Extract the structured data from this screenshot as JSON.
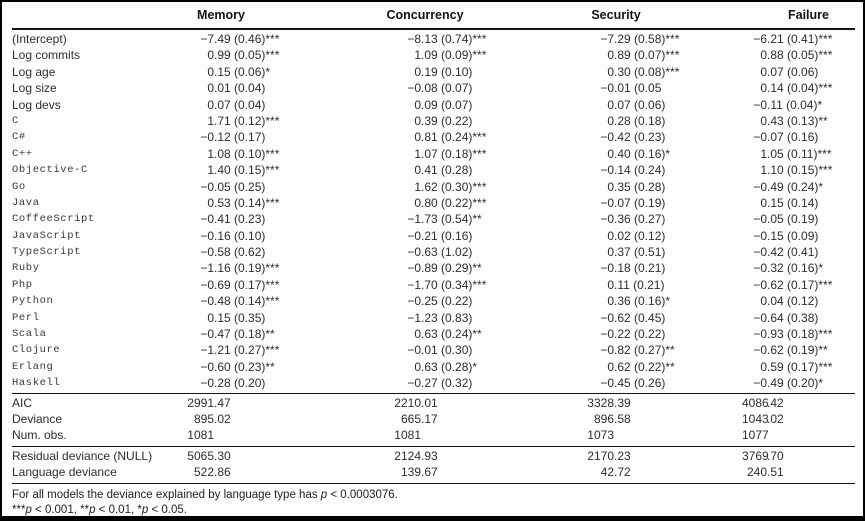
{
  "colors": {
    "text": "#2e2e2e",
    "line": "#141414",
    "frame_border": "#000000",
    "background": "#fdfdfd"
  },
  "table": {
    "column_headers": [
      "Memory",
      "Concurrency",
      "Security",
      "Failure"
    ],
    "coefficient_rows": [
      {
        "label": "(Intercept)",
        "mono": false,
        "values": [
          "−7.49 (0.46)***",
          "−8.13 (0.74)***",
          "−7.29 (0.58)***",
          "−6.21 (0.41)***"
        ]
      },
      {
        "label": "Log commits",
        "mono": false,
        "values": [
          "0.99 (0.05)***",
          "1.09 (0.09)***",
          "0.89 (0.07)***",
          "0.88 (0.05)***"
        ]
      },
      {
        "label": "Log age",
        "mono": false,
        "values": [
          "0.15 (0.06)*",
          "0.19 (0.10)",
          "0.30 (0.08)***",
          "0.07 (0.06)"
        ]
      },
      {
        "label": "Log size",
        "mono": false,
        "values": [
          "0.01 (0.04)",
          "−0.08 (0.07)",
          "−0.01 (0.05",
          "0.14 (0.04)***"
        ]
      },
      {
        "label": "Log devs",
        "mono": false,
        "values": [
          "0.07 (0.04)",
          "0.09 (0.07)",
          "0.07 (0.06)",
          "−0.11 (0.04)*"
        ]
      },
      {
        "label": "C",
        "mono": true,
        "values": [
          "1.71 (0.12)***",
          "0.39 (0.22)",
          "0.28 (0.18)",
          "0.43 (0.13)**"
        ]
      },
      {
        "label": "C#",
        "mono": true,
        "values": [
          "−0.12 (0.17)",
          "0.81 (0.24)***",
          "−0.42 (0.23)",
          "−0.07 (0.16)"
        ]
      },
      {
        "label": "C++",
        "mono": true,
        "values": [
          "1.08 (0.10)***",
          "1.07 (0.18)***",
          "0.40 (0.16)*",
          "1.05 (0.11)***"
        ]
      },
      {
        "label": "Objective-C",
        "mono": true,
        "values": [
          "1.40 (0.15)***",
          "0.41 (0.28)",
          "−0.14 (0.24)",
          "1.10 (0.15)***"
        ]
      },
      {
        "label": "Go",
        "mono": true,
        "values": [
          "−0.05 (0.25)",
          "1.62 (0.30)***",
          "0.35 (0.28)",
          "−0.49 (0.24)*"
        ]
      },
      {
        "label": "Java",
        "mono": true,
        "values": [
          "0.53 (0.14)***",
          "0.80 (0.22)***",
          "−0.07 (0.19)",
          "0.15 (0.14)"
        ]
      },
      {
        "label": "CoffeeScript",
        "mono": true,
        "values": [
          "−0.41 (0.23)",
          "−1.73 (0.54)**",
          "−0.36 (0.27)",
          "−0.05 (0.19)"
        ]
      },
      {
        "label": "JavaScript",
        "mono": true,
        "values": [
          "−0.16 (0.10)",
          "−0.21 (0.16)",
          "0.02 (0.12)",
          "−0.15 (0.09)"
        ]
      },
      {
        "label": "TypeScript",
        "mono": true,
        "values": [
          "−0.58 (0.62)",
          "−0.63 (1.02)",
          "0.37 (0.51)",
          "−0.42 (0.41)"
        ]
      },
      {
        "label": "Ruby",
        "mono": true,
        "values": [
          "−1.16 (0.19)***",
          "−0.89 (0.29)**",
          "−0.18 (0.21)",
          "−0.32 (0.16)*"
        ]
      },
      {
        "label": "Php",
        "mono": true,
        "values": [
          "−0.69 (0.17)***",
          "−1.70 (0.34)***",
          "0.11 (0.21)",
          "−0.62 (0.17)***"
        ]
      },
      {
        "label": "Python",
        "mono": true,
        "values": [
          "−0.48 (0.14)***",
          "−0.25 (0.22)",
          "0.36 (0.16)*",
          "0.04 (0.12)"
        ]
      },
      {
        "label": "Perl",
        "mono": true,
        "values": [
          "0.15 (0.35)",
          "−1.23 (0.83)",
          "−0.62 (0.45)",
          "−0.64 (0.38)"
        ]
      },
      {
        "label": "Scala",
        "mono": true,
        "values": [
          "−0.47 (0.18)**",
          "0.63 (0.24)**",
          "−0.22 (0.22)",
          "−0.93 (0.18)***"
        ]
      },
      {
        "label": "Clojure",
        "mono": true,
        "values": [
          "−1.21 (0.27)***",
          "−0.01 (0.30)",
          "−0.82 (0.27)**",
          "−0.62 (0.19)**"
        ]
      },
      {
        "label": "Erlang",
        "mono": true,
        "values": [
          "−0.60 (0.23)**",
          "0.63 (0.28)*",
          "0.62 (0.22)**",
          "0.59 (0.17)***"
        ]
      },
      {
        "label": "Haskell",
        "mono": true,
        "values": [
          "−0.28 (0.20)",
          "−0.27 (0.32)",
          "−0.45 (0.26)",
          "−0.49 (0.20)*"
        ]
      }
    ],
    "fit_rows": [
      {
        "label": "AIC",
        "mono": false,
        "values": [
          "2991.47",
          "2210.01",
          "3328.39",
          "4086.42"
        ]
      },
      {
        "label": "Deviance",
        "mono": false,
        "values": [
          "895.02",
          "665.17",
          "896.58",
          "1043.02"
        ]
      },
      {
        "label": "Num. obs.",
        "mono": false,
        "values": [
          "1081",
          "1081",
          "1073",
          "1077"
        ]
      }
    ],
    "deviance_rows": [
      {
        "label": "Residual deviance (NULL)",
        "mono": false,
        "values": [
          "5065.30",
          "2124.93",
          "2170.23",
          "3769.70"
        ]
      },
      {
        "label": "Language deviance",
        "mono": false,
        "values": [
          "522.86",
          "139.67",
          "42.72",
          "240.51"
        ]
      }
    ],
    "footnotes": [
      {
        "segments": [
          {
            "t": "For all models the deviance explained by language type has "
          },
          {
            "t": "p",
            "i": true
          },
          {
            "t": " < 0.0003076."
          }
        ]
      },
      {
        "segments": [
          {
            "t": "***"
          },
          {
            "t": "p",
            "i": true
          },
          {
            "t": " < 0.001, **"
          },
          {
            "t": "p",
            "i": true
          },
          {
            "t": " < 0.01, *"
          },
          {
            "t": "p",
            "i": true
          },
          {
            "t": " < 0.05."
          }
        ]
      }
    ]
  }
}
